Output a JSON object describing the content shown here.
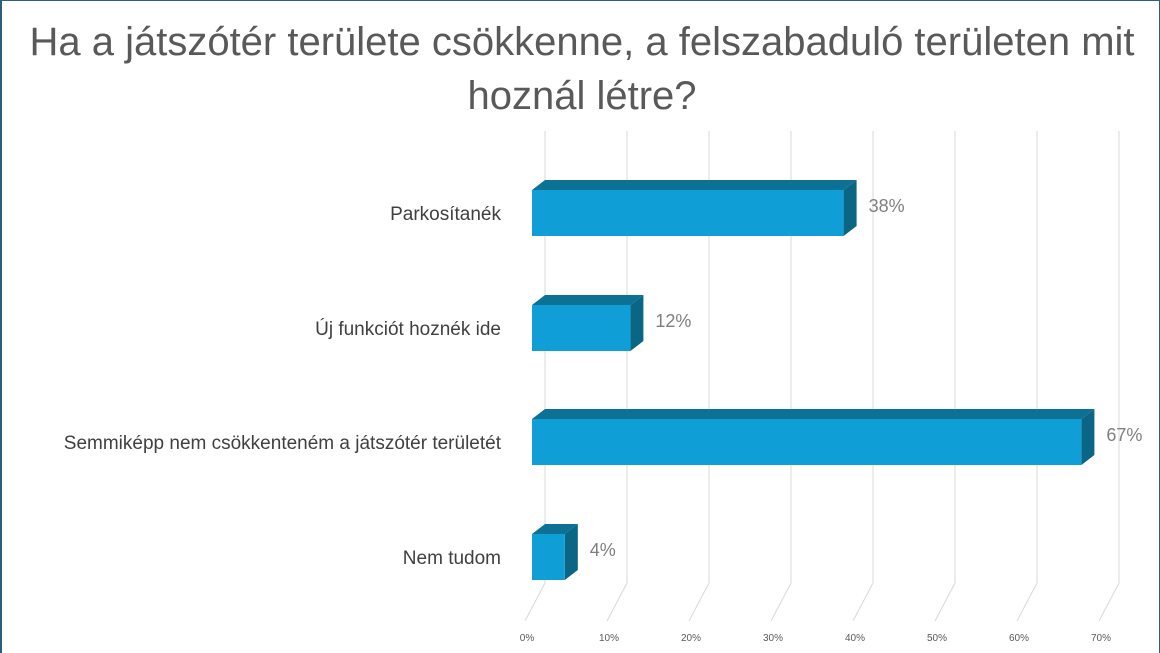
{
  "chart_data": {
    "type": "bar",
    "orientation": "horizontal",
    "style": "3d",
    "title": "Ha a játszótér területe csökkenne, a felszabaduló területen mit hoznál létre?",
    "categories": [
      "Parkosítanék",
      "Új funkciót hoznék ide",
      "Semmiképp nem csökkenteném a játszótér területét",
      "Nem tudom"
    ],
    "values": [
      38,
      12,
      67,
      4
    ],
    "value_labels": [
      "38%",
      "12%",
      "67%",
      "4%"
    ],
    "xlim": [
      0,
      70
    ],
    "xticks": [
      "0%",
      "10%",
      "20%",
      "30%",
      "40%",
      "50%",
      "60%",
      "70%"
    ],
    "xlabel": "",
    "ylabel": "",
    "grid": true,
    "legend": "none",
    "colors": {
      "bar_front": "#0f9ed5",
      "bar_top": "#0d7196",
      "bar_side": "#0b6585",
      "grid": "#d9d9d9"
    }
  }
}
